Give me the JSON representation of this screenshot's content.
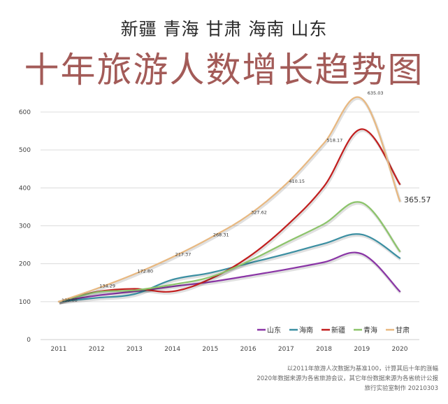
{
  "subtitle": "新疆 青海 甘肃 海南 山东",
  "title": "十年旅游人数增长趋势图",
  "notes": [
    "以2011年旅游人次数据为基准100，计算其后十年的涨幅",
    "2020年数据来源为各省旅游会议，其它年份数据来源为各省统计公报",
    "旅行实验室制作 20210303"
  ],
  "chart_data": {
    "type": "line",
    "title": "十年旅游人数增长趋势图",
    "x": [
      "2011",
      "2012",
      "2013",
      "2014",
      "2015",
      "2016",
      "2017",
      "2018",
      "2019",
      "2020"
    ],
    "ylim": [
      0,
      600
    ],
    "yticks": [
      0,
      100,
      200,
      300,
      400,
      500,
      600
    ],
    "grid": true,
    "legend_position": "bottom-right",
    "series": [
      {
        "name": "山东",
        "color": "#8a35a6",
        "values": [
          100,
          116,
          127,
          140,
          152,
          168,
          185,
          204,
          226,
          127
        ]
      },
      {
        "name": "海南",
        "color": "#3b8fa2",
        "values": [
          100,
          110,
          120,
          158,
          176,
          201,
          226,
          253,
          277,
          215
        ]
      },
      {
        "name": "新疆",
        "color": "#c21e1e",
        "values": [
          100,
          126,
          134,
          127,
          160,
          217,
          299,
          404,
          555,
          410
        ]
      },
      {
        "name": "青海",
        "color": "#8cc46a",
        "values": [
          100,
          125,
          130,
          145,
          165,
          206,
          256,
          305,
          361,
          233
        ]
      },
      {
        "name": "甘肃",
        "color": "#e8b880",
        "values": [
          100,
          134.29,
          172.8,
          217.37,
          268.31,
          327.62,
          410.15,
          518.17,
          635.03,
          365.57
        ]
      }
    ],
    "data_labels": [
      {
        "series": "甘肃",
        "x": "2011",
        "text": "100.00"
      },
      {
        "series": "甘肃",
        "x": "2012",
        "text": "134.29"
      },
      {
        "series": "甘肃",
        "x": "2013",
        "text": "172.80"
      },
      {
        "series": "甘肃",
        "x": "2014",
        "text": "217.37"
      },
      {
        "series": "甘肃",
        "x": "2015",
        "text": "268.31"
      },
      {
        "series": "甘肃",
        "x": "2016",
        "text": "327.62"
      },
      {
        "series": "甘肃",
        "x": "2017",
        "text": "410.15"
      },
      {
        "series": "甘肃",
        "x": "2018",
        "text": "518.17"
      },
      {
        "series": "甘肃",
        "x": "2019",
        "text": "635.03"
      },
      {
        "series": "甘肃",
        "x": "2020",
        "text": "365.57"
      }
    ]
  }
}
